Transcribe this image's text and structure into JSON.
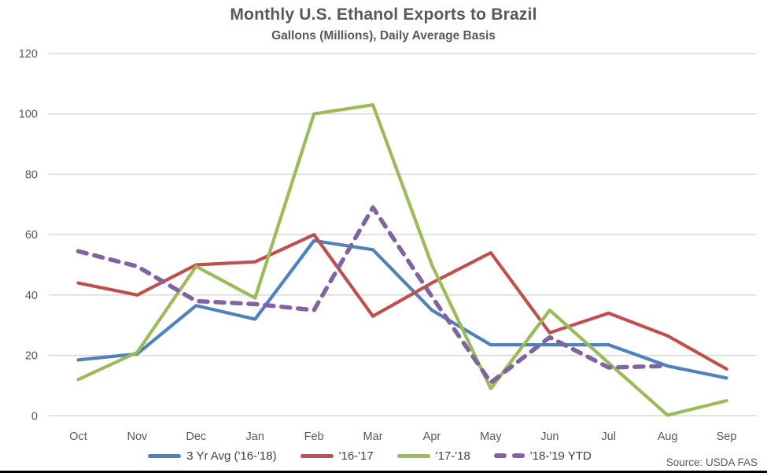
{
  "chart_data": {
    "type": "line",
    "title": "Monthly U.S. Ethanol Exports to Brazil",
    "subtitle": "Gallons (Millions), Daily Average Basis",
    "source_note": "Source: USDA FAS",
    "categories": [
      "Oct",
      "Nov",
      "Dec",
      "Jan",
      "Feb",
      "Mar",
      "Apr",
      "May",
      "Jun",
      "Jul",
      "Aug",
      "Sep"
    ],
    "ylim": [
      0,
      120
    ],
    "yticks": [
      0,
      20,
      40,
      60,
      80,
      100,
      120
    ],
    "grid": true,
    "legend_position": "bottom",
    "gridline_color": "#D9D9D9",
    "axis_text_color": "#595959",
    "series": [
      {
        "name": "3 Yr Avg ('16-'18)",
        "color": "#4F81BD",
        "dash": "solid",
        "values": [
          18.5,
          20.5,
          36.5,
          32,
          58,
          55,
          35,
          23.5,
          23.5,
          23.5,
          16.5,
          12.5
        ]
      },
      {
        "name": "'16-'17",
        "color": "#C0504D",
        "dash": "solid",
        "values": [
          44,
          40,
          50,
          51,
          60,
          33,
          44,
          54,
          27.5,
          34,
          26.5,
          15.5
        ]
      },
      {
        "name": "'17-'18",
        "color": "#9BBB59",
        "dash": "solid",
        "values": [
          12,
          21,
          49.5,
          39,
          100,
          103,
          50,
          9,
          35,
          17.5,
          0.2,
          5
        ]
      },
      {
        "name": "'18-'19 YTD",
        "color": "#8064A2",
        "dash": "dashed",
        "values": [
          54.5,
          49.5,
          38,
          37,
          35,
          69,
          39.5,
          11,
          26,
          16,
          16.5,
          null
        ]
      }
    ]
  }
}
